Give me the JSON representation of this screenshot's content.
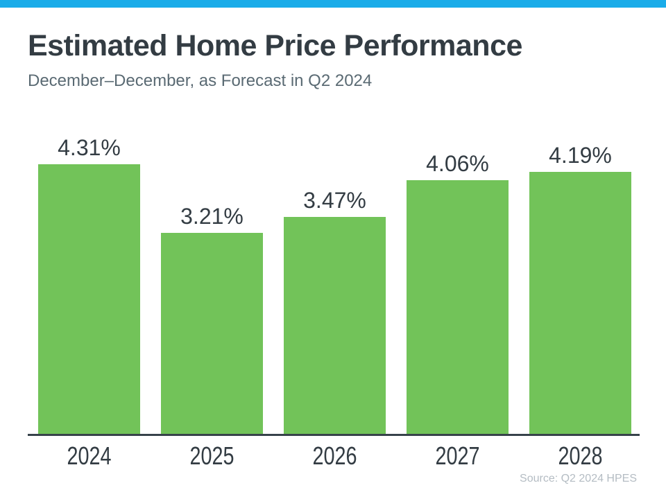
{
  "page": {
    "title": "Estimated Home Price Performance",
    "subtitle": "December–December, as Forecast in Q2 2024",
    "source_note": "Source: Q2 2024 HPES"
  },
  "colors": {
    "accent_top_bar": "#1AACE9",
    "bar_green": "#72C359",
    "title_text": "#333C43",
    "subtitle_text": "#5A6A73",
    "axis_line": "#37424A",
    "source_text": "#B4BCC3"
  },
  "chart_data": {
    "type": "bar",
    "title": "Estimated Home Price Performance",
    "subtitle": "December–December, as Forecast in Q2 2024",
    "categories": [
      "2024",
      "2025",
      "2026",
      "2027",
      "2028"
    ],
    "values": [
      4.31,
      3.21,
      3.47,
      4.06,
      4.19
    ],
    "value_labels": [
      "4.31%",
      "3.21%",
      "3.47%",
      "4.06%",
      "4.19%"
    ],
    "xlabel": "",
    "ylabel": "",
    "ylim": [
      0,
      4.31
    ],
    "grid": false,
    "legend": false,
    "data_labels_position": "above-bars",
    "source": "Source: Q2 2024 HPES"
  }
}
